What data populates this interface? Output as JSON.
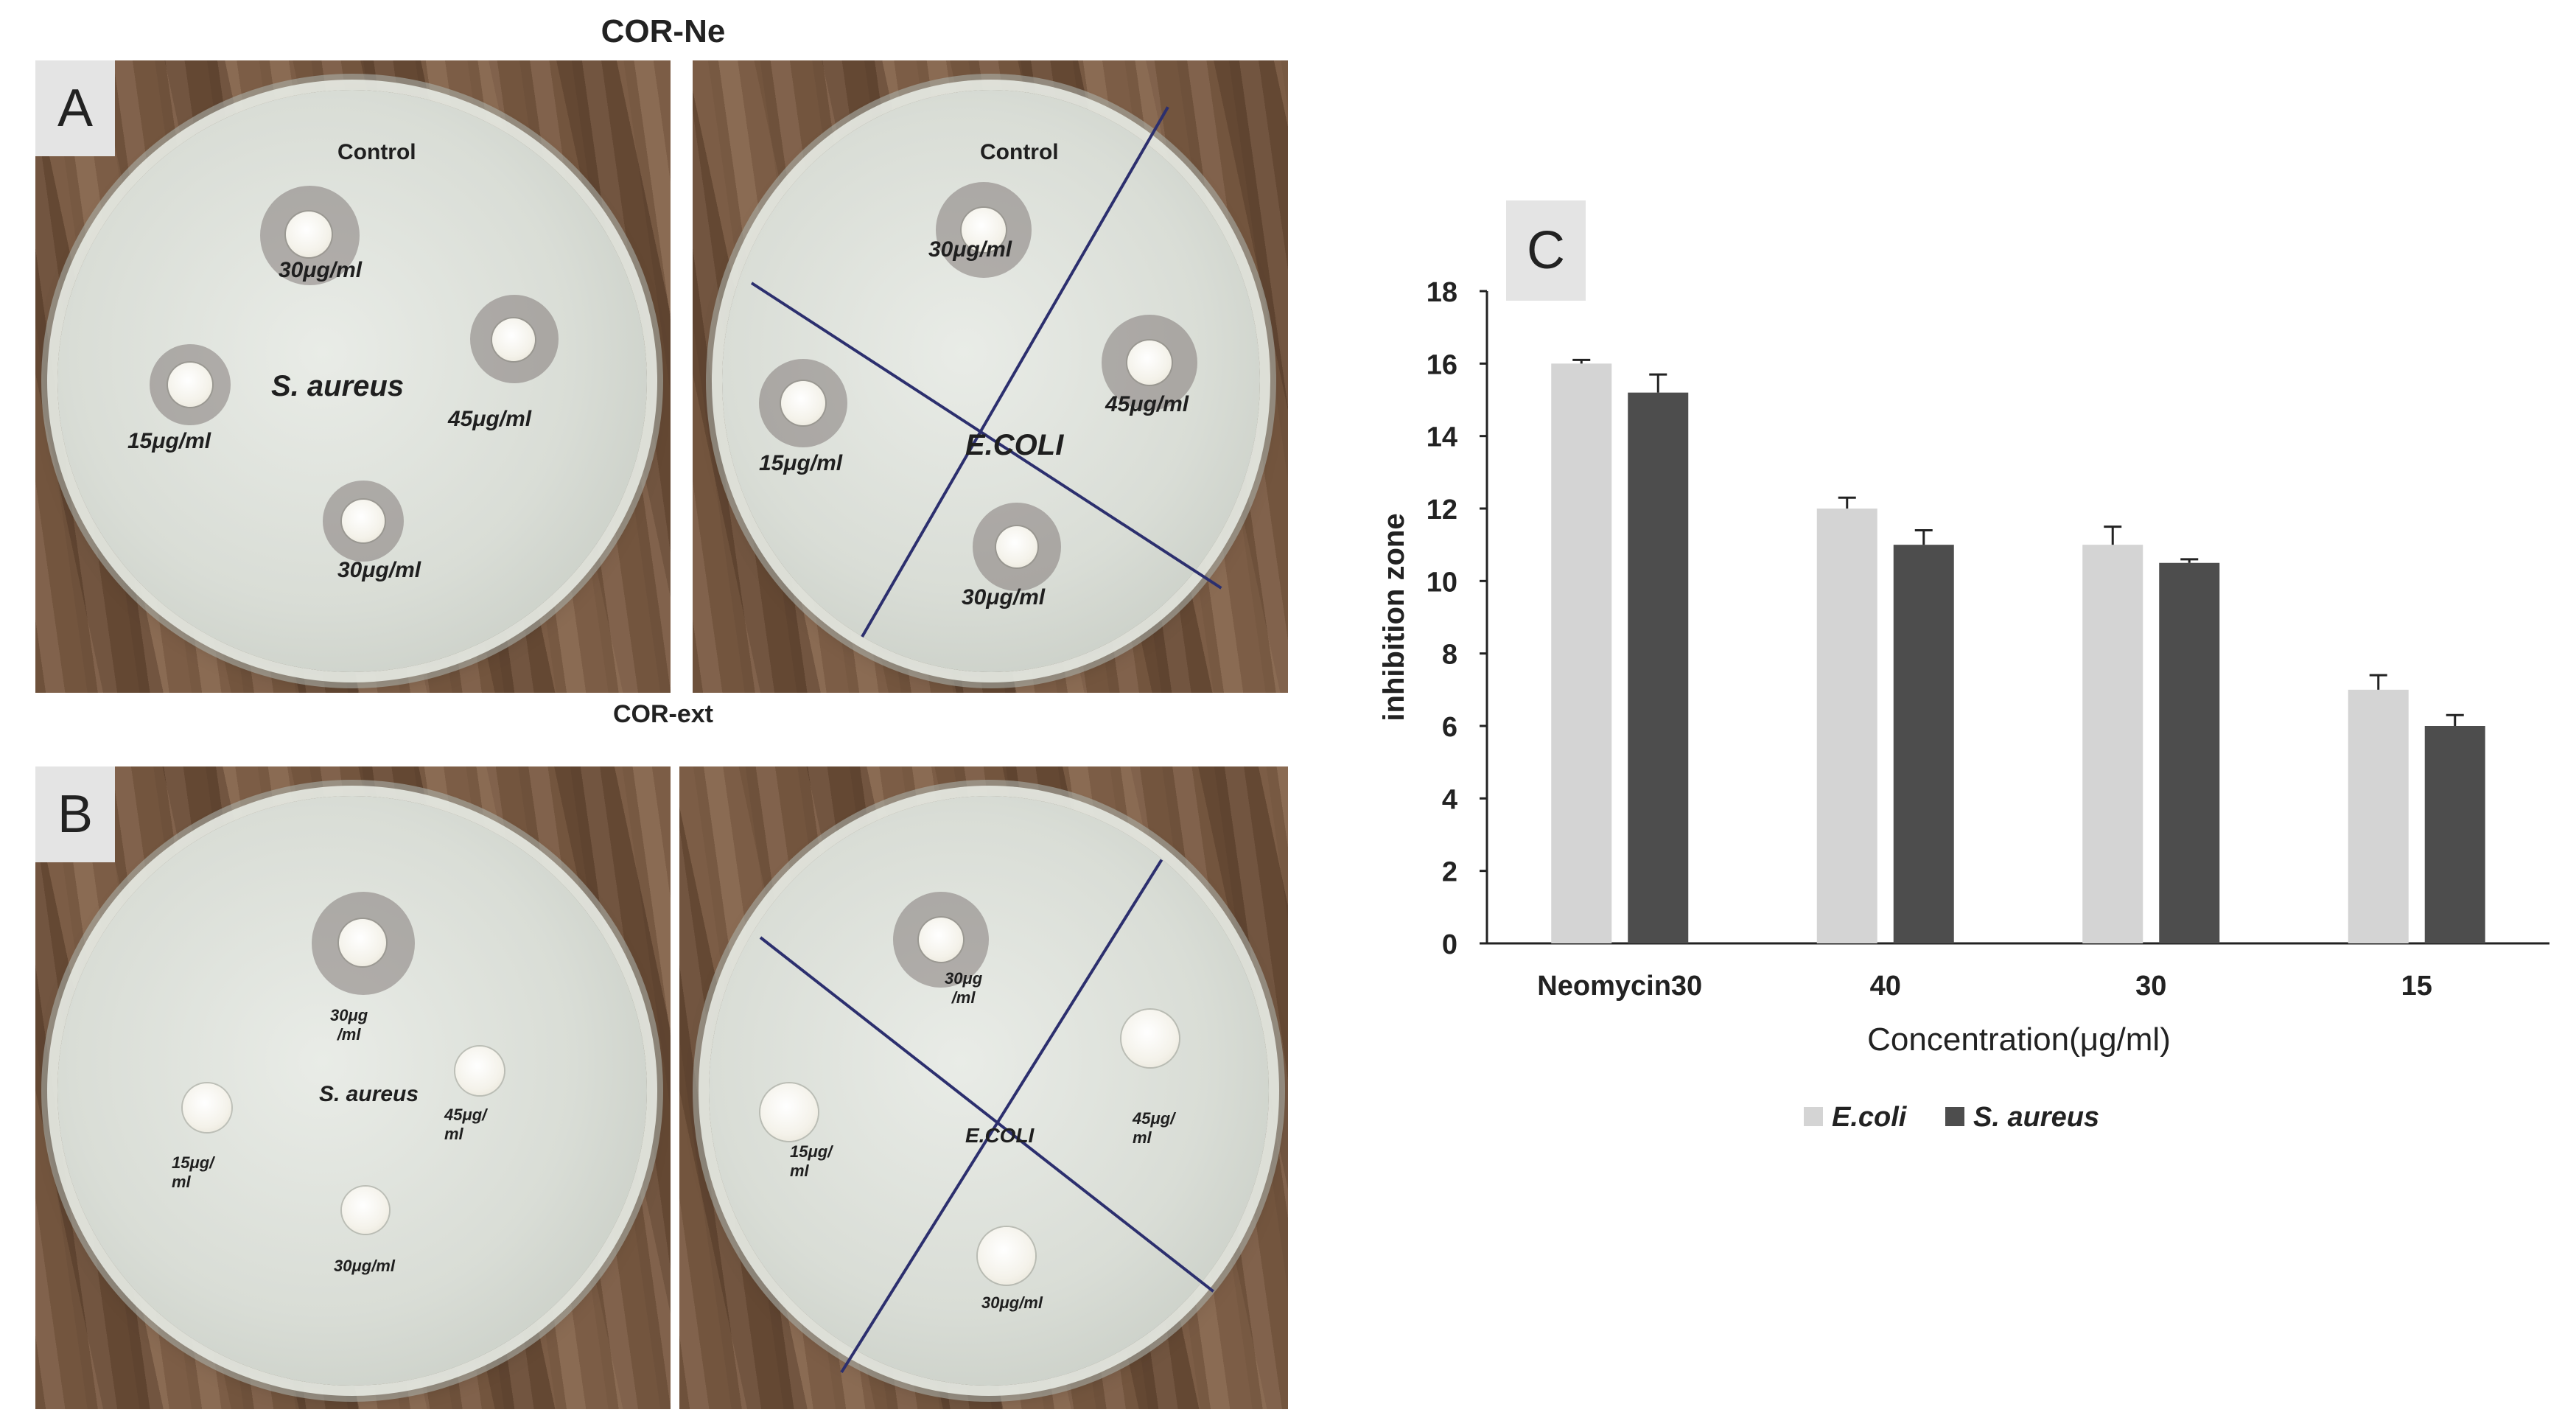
{
  "figure": {
    "top_title": "COR-Ne",
    "bottom_title": "COR-ext",
    "panels": {
      "a": "A",
      "b": "B",
      "c": "C"
    }
  },
  "plates": {
    "a_left": {
      "control": "Control",
      "organism": "S. aureus",
      "labels": [
        "30μg/ml",
        "15μg/ml",
        "45μg/ml",
        "30μg/ml"
      ]
    },
    "a_right": {
      "control": "Control",
      "organism": "E.COLI",
      "labels": [
        "30μg/ml",
        "15μg/ml",
        "45μg/ml",
        "30μg/ml"
      ]
    },
    "b_left": {
      "organism": "S. aureus",
      "labels": [
        "30μg\n/ml",
        "15μg/\nml",
        "45μg/\nml",
        "30μg/ml"
      ]
    },
    "b_right": {
      "organism": "E.COLI",
      "labels": [
        "30μg\n/ml",
        "15μg/\nml",
        "45μg/\nml",
        "30μg/ml"
      ]
    }
  },
  "chart_data": {
    "type": "bar",
    "categories": [
      "Neomycin30",
      "40",
      "30",
      "15"
    ],
    "series": [
      {
        "name": "E.coli",
        "values": [
          16,
          12,
          11,
          7
        ],
        "errors": [
          0.1,
          0.3,
          0.5,
          0.4
        ],
        "color": "#d4d4d4"
      },
      {
        "name": "S. aureus",
        "values": [
          15.2,
          11,
          10.5,
          6
        ],
        "errors": [
          0.5,
          0.4,
          0.1,
          0.3
        ],
        "color": "#4d4d4d"
      }
    ],
    "xlabel": "Concentration(μg/ml)",
    "ylabel": "inhibition zone",
    "ylim": [
      0,
      18
    ],
    "yticks": [
      "0",
      "2",
      "4",
      "6",
      "8",
      "10",
      "12",
      "14",
      "16",
      "18"
    ],
    "grid": false,
    "legend_position": "bottom"
  }
}
